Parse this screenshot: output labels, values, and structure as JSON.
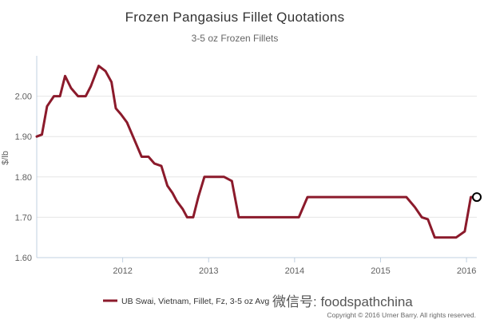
{
  "chart_data": {
    "type": "line",
    "title": "Frozen Pangasius Fillet Quotations",
    "subtitle": "3-5 oz Frozen Fillets",
    "ylabel": "$/lb",
    "xlabel": "",
    "ylim": [
      1.6,
      2.1
    ],
    "xlim": [
      2011.0,
      2016.12
    ],
    "yticks": [
      "1.60",
      "1.70",
      "1.80",
      "1.90",
      "2.00"
    ],
    "xticks": [
      "2012",
      "2013",
      "2014",
      "2015",
      "2016"
    ],
    "grid": "horizontal",
    "legend": "bottom",
    "series": [
      {
        "name": "UB Swai, Vietnam, Fillet, Fz, 3-5 oz Avg",
        "color": "#8b1a2b",
        "x": [
          2011.0,
          2011.06,
          2011.12,
          2011.2,
          2011.27,
          2011.33,
          2011.4,
          2011.48,
          2011.57,
          2011.63,
          2011.72,
          2011.8,
          2011.87,
          2011.92,
          2011.98,
          2012.05,
          2012.13,
          2012.22,
          2012.3,
          2012.37,
          2012.45,
          2012.52,
          2012.58,
          2012.63,
          2012.7,
          2012.75,
          2012.82,
          2012.88,
          2012.95,
          2013.02,
          2013.1,
          2013.18,
          2013.27,
          2013.35,
          2013.45,
          2013.55,
          2013.62,
          2013.68,
          2013.75,
          2013.85,
          2013.95,
          2014.05,
          2014.15,
          2014.27,
          2014.35,
          2014.5,
          2014.7,
          2014.9,
          2015.1,
          2015.3,
          2015.4,
          2015.48,
          2015.55,
          2015.63,
          2015.72,
          2015.8,
          2015.88,
          2015.98,
          2016.05,
          2016.12
        ],
        "values": [
          1.9,
          1.905,
          1.975,
          2.0,
          2.0,
          2.05,
          2.02,
          2.0,
          2.0,
          2.025,
          2.075,
          2.062,
          2.035,
          1.97,
          1.955,
          1.935,
          1.895,
          1.85,
          1.85,
          1.833,
          1.827,
          1.778,
          1.76,
          1.74,
          1.72,
          1.7,
          1.7,
          1.75,
          1.8,
          1.8,
          1.8,
          1.8,
          1.79,
          1.7,
          1.7,
          1.7,
          1.7,
          1.7,
          1.7,
          1.7,
          1.7,
          1.7,
          1.75,
          1.75,
          1.75,
          1.75,
          1.75,
          1.75,
          1.75,
          1.75,
          1.725,
          1.7,
          1.695,
          1.65,
          1.65,
          1.65,
          1.65,
          1.665,
          1.75,
          1.75
        ]
      }
    ]
  },
  "watermark_text": "微信号: foodspathchina",
  "copyright_text": "Copyright © 2016 Urner Barry. All rights reserved.",
  "colors": {
    "grid": "#e6e6e6",
    "axis": "#c0d0e0",
    "line": "#8b1a2b"
  }
}
